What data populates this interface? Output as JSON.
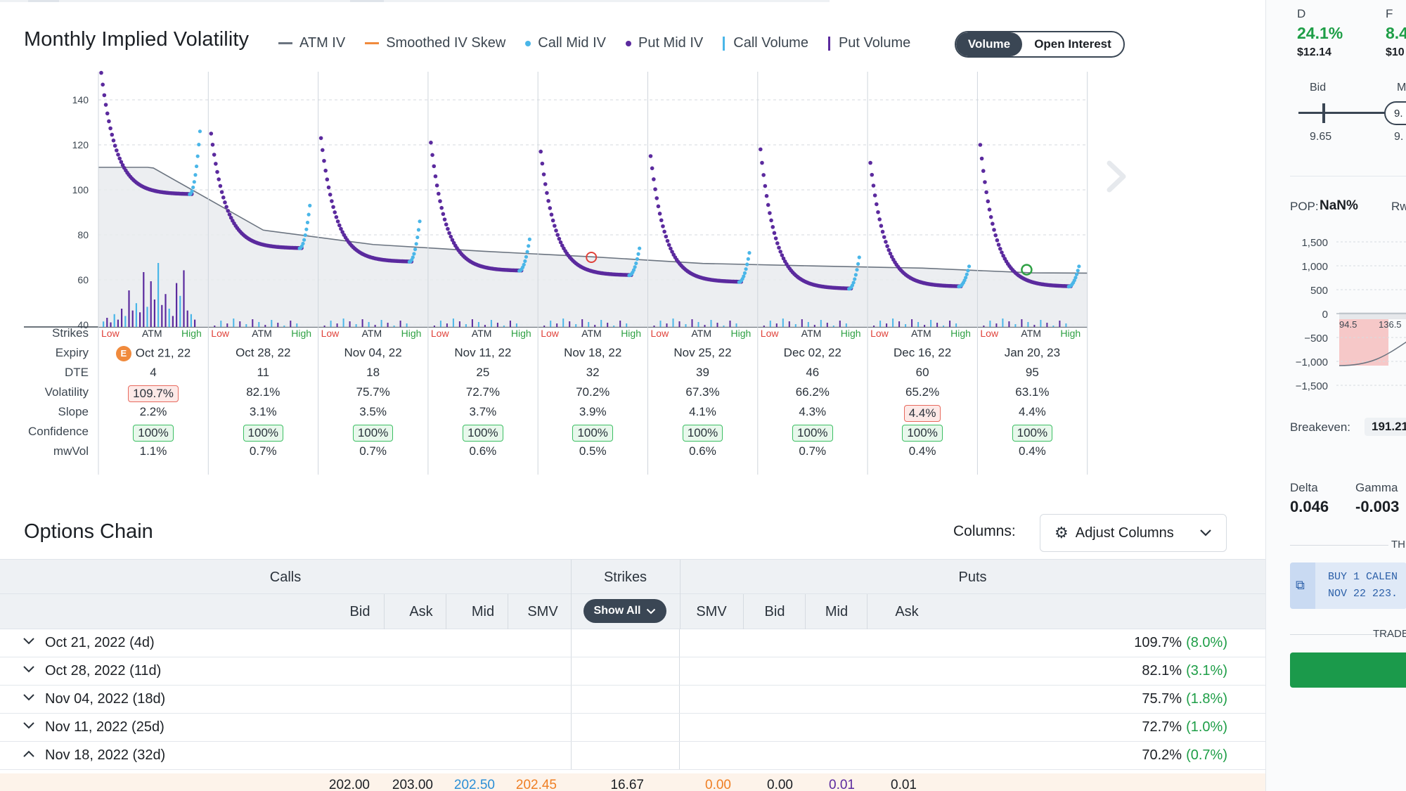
{
  "header": {
    "title": "Monthly Implied Volatility",
    "legend": [
      {
        "label": "ATM IV",
        "type": "line",
        "color": "#6b7480"
      },
      {
        "label": "Smoothed IV Skew",
        "type": "line",
        "color": "#f08a3c"
      },
      {
        "label": "Call Mid IV",
        "type": "dot",
        "color": "#4ab6e8"
      },
      {
        "label": "Put Mid IV",
        "type": "dot",
        "color": "#5b2a9e"
      },
      {
        "label": "Call Volume",
        "type": "bar",
        "color": "#4ab6e8"
      },
      {
        "label": "Put Volume",
        "type": "bar",
        "color": "#5b2a9e"
      }
    ],
    "toggle": {
      "active": "Volume",
      "inactive": "Open Interest"
    }
  },
  "chart_data": {
    "type": "scatter",
    "y_ticks": [
      40,
      60,
      80,
      100,
      120,
      140
    ],
    "ylim": [
      40,
      150
    ],
    "grid": true,
    "series_colors": {
      "call_mid": "#4ab6e8",
      "put_mid": "#5b2a9e",
      "atm": "#6b7480"
    },
    "panels": [
      {
        "expiry": "Oct 21, 22",
        "atm_iv": 109.7,
        "left_iv": 152,
        "right_iv": 126,
        "end_iv": 98
      },
      {
        "expiry": "Oct 28, 22",
        "atm_iv": 82.1,
        "left_iv": 125,
        "right_iv": 93,
        "end_iv": 74
      },
      {
        "expiry": "Nov 04, 22",
        "atm_iv": 75.7,
        "left_iv": 123,
        "right_iv": 86,
        "end_iv": 68
      },
      {
        "expiry": "Nov 11, 22",
        "atm_iv": 72.7,
        "left_iv": 121,
        "right_iv": 78,
        "end_iv": 64
      },
      {
        "expiry": "Nov 18, 22",
        "atm_iv": 70.2,
        "left_iv": 117,
        "right_iv": 74,
        "end_iv": 62
      },
      {
        "expiry": "Nov 25, 22",
        "atm_iv": 67.3,
        "left_iv": 115,
        "right_iv": 72,
        "end_iv": 59
      },
      {
        "expiry": "Dec 02, 22",
        "atm_iv": 66.2,
        "left_iv": 118,
        "right_iv": 70,
        "end_iv": 56
      },
      {
        "expiry": "Dec 16, 22",
        "atm_iv": 65.2,
        "left_iv": 112,
        "right_iv": 66,
        "end_iv": 57
      },
      {
        "expiry": "Jan 20, 23",
        "atm_iv": 63.1,
        "left_iv": 120,
        "right_iv": 66,
        "end_iv": 57
      }
    ]
  },
  "stats": {
    "row_labels": [
      "Strikes",
      "Expiry",
      "DTE",
      "Volatility",
      "Slope",
      "Confidence",
      "mwVol"
    ],
    "strike_labels": {
      "low": "Low",
      "atm": "ATM",
      "high": "High"
    },
    "earnings_badge": "E",
    "columns": [
      {
        "expiry": "Oct 21, 22",
        "dte": "4",
        "vol": "109.7%",
        "vol_flag": true,
        "slope": "2.2%",
        "slope_flag": false,
        "conf": "100%",
        "mwvol": "1.1%"
      },
      {
        "expiry": "Oct 28, 22",
        "dte": "11",
        "vol": "82.1%",
        "vol_flag": false,
        "slope": "3.1%",
        "slope_flag": false,
        "conf": "100%",
        "mwvol": "0.7%"
      },
      {
        "expiry": "Nov 04, 22",
        "dte": "18",
        "vol": "75.7%",
        "vol_flag": false,
        "slope": "3.5%",
        "slope_flag": false,
        "conf": "100%",
        "mwvol": "0.7%"
      },
      {
        "expiry": "Nov 11, 22",
        "dte": "25",
        "vol": "72.7%",
        "vol_flag": false,
        "slope": "3.7%",
        "slope_flag": false,
        "conf": "100%",
        "mwvol": "0.6%"
      },
      {
        "expiry": "Nov 18, 22",
        "dte": "32",
        "vol": "70.2%",
        "vol_flag": false,
        "slope": "3.9%",
        "slope_flag": false,
        "conf": "100%",
        "mwvol": "0.5%"
      },
      {
        "expiry": "Nov 25, 22",
        "dte": "39",
        "vol": "67.3%",
        "vol_flag": false,
        "slope": "4.1%",
        "slope_flag": false,
        "conf": "100%",
        "mwvol": "0.6%"
      },
      {
        "expiry": "Dec 02, 22",
        "dte": "46",
        "vol": "66.2%",
        "vol_flag": false,
        "slope": "4.3%",
        "slope_flag": false,
        "conf": "100%",
        "mwvol": "0.7%"
      },
      {
        "expiry": "Dec 16, 22",
        "dte": "60",
        "vol": "65.2%",
        "vol_flag": false,
        "slope": "4.4%",
        "slope_flag": true,
        "conf": "100%",
        "mwvol": "0.4%"
      },
      {
        "expiry": "Jan 20, 23",
        "dte": "95",
        "vol": "63.1%",
        "vol_flag": false,
        "slope": "4.4%",
        "slope_flag": false,
        "conf": "100%",
        "mwvol": "0.4%"
      }
    ]
  },
  "chain": {
    "title": "Options Chain",
    "columns_label": "Columns:",
    "adjust_label": "Adjust Columns",
    "calls_label": "Calls",
    "strikes_label": "Strikes",
    "puts_label": "Puts",
    "call_cols": [
      "Bid",
      "Ask",
      "Mid",
      "SMV"
    ],
    "put_cols": [
      "SMV",
      "Bid",
      "Mid",
      "Ask"
    ],
    "show_all": "Show All",
    "expirations": [
      {
        "label": "Oct 21, 2022 (4d)",
        "iv": "109.7%",
        "chg": "(8.0%)",
        "open": false
      },
      {
        "label": "Oct 28, 2022 (11d)",
        "iv": "82.1%",
        "chg": "(3.1%)",
        "open": false
      },
      {
        "label": "Nov 04, 2022 (18d)",
        "iv": "75.7%",
        "chg": "(1.8%)",
        "open": false
      },
      {
        "label": "Nov 11, 2022 (25d)",
        "iv": "72.7%",
        "chg": "(1.0%)",
        "open": false
      },
      {
        "label": "Nov 18, 2022 (32d)",
        "iv": "70.2%",
        "chg": "(0.7%)",
        "open": true
      }
    ],
    "partial_row": {
      "bid": "202.00",
      "ask": "203.00",
      "mid": "202.50",
      "smv": "202.45",
      "strike": "16.67",
      "p_smv": "0.00",
      "p_bid": "0.00",
      "p_mid": "0.01",
      "p_ask": "0.01"
    }
  },
  "right_panel": {
    "d_label": "D",
    "d_value": "24.1%",
    "d_price": "$12.14",
    "f_label": "F",
    "f_value": "8.4",
    "f_price": "$10",
    "bid_label": "Bid",
    "m_label": "M",
    "bid_value": "9.65",
    "slider_val": "9.",
    "slider_val2": "9.",
    "pop_label": "POP:",
    "pop_value": "NaN%",
    "rw_label": "Rw",
    "pl_ticks": [
      "1,500",
      "1,000",
      "500",
      "0",
      "−500",
      "−1,000",
      "−1,500"
    ],
    "pl_x1": "94.5",
    "pl_x2": "136.5",
    "breakeven_label": "Breakeven:",
    "breakeven_value": "191.21",
    "delta_label": "Delta",
    "delta_value": "0.046",
    "gamma_label": "Gamma",
    "gamma_value": "-0.003",
    "th_label": "TH",
    "order_line1": "BUY 1 CALEN",
    "order_line2": "NOV 22 223.",
    "trade_label": "TRADE",
    "colors": {
      "green": "#1e9e47",
      "trade": "#1b9a4b"
    }
  }
}
